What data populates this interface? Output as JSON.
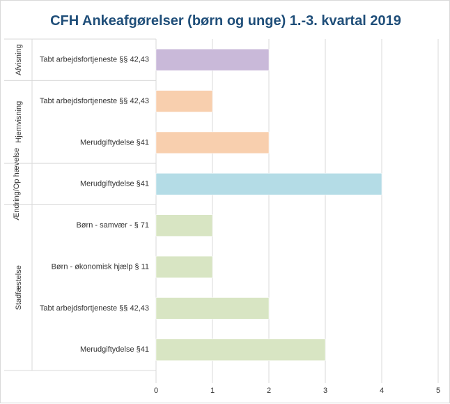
{
  "chart_data": {
    "type": "bar",
    "orientation": "horizontal",
    "title": "CFH Ankeafgørelser (børn og unge) 1.-3. kvartal 2019",
    "xlabel": "",
    "ylabel": "",
    "xlim": [
      0,
      5
    ],
    "xticks": [
      "0",
      "1",
      "2",
      "3",
      "4",
      "5"
    ],
    "grid": true,
    "groups": [
      {
        "name": "Afvisning",
        "color": "#c9b9d9",
        "items": [
          {
            "label": "Tabt arbejdsfortjeneste §§ 42,43",
            "value": 2
          }
        ]
      },
      {
        "name": "Hjemvisning",
        "color": "#f8cfae",
        "items": [
          {
            "label": "Tabt arbejdsfortjeneste §§ 42,43",
            "value": 1
          },
          {
            "label": "Merudgiftydelse §41",
            "value": 2
          }
        ]
      },
      {
        "name": "Ændring/Op hævelse",
        "color": "#b4dce6",
        "items": [
          {
            "label": "Merudgiftydelse §41",
            "value": 4
          }
        ]
      },
      {
        "name": "Stadfæstelse",
        "color": "#d8e5c3",
        "items": [
          {
            "label": "Børn - samvær - § 71",
            "value": 1
          },
          {
            "label": "Børn - økonomisk hjælp § 11",
            "value": 1
          },
          {
            "label": "Tabt arbejdsfortjeneste §§ 42,43",
            "value": 2
          },
          {
            "label": "Merudgiftydelse §41",
            "value": 3
          }
        ]
      }
    ]
  }
}
